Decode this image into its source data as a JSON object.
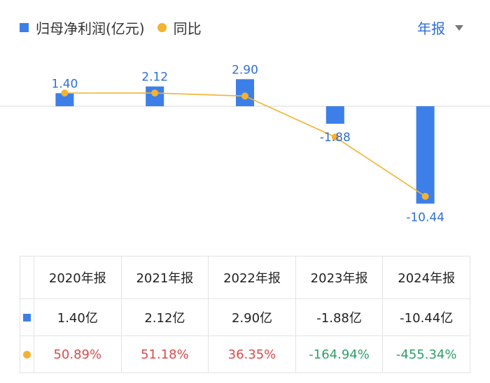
{
  "legend": {
    "bar_label": "归母净利润(亿元)",
    "line_label": "同比"
  },
  "period_selector": "年报",
  "chart_data": {
    "type": "bar",
    "categories": [
      "2020年报",
      "2021年报",
      "2022年报",
      "2023年报",
      "2024年报"
    ],
    "series": [
      {
        "name": "归母净利润(亿元)",
        "type": "bar",
        "values": [
          1.4,
          2.12,
          2.9,
          -1.88,
          -10.44
        ],
        "labels": [
          "1.40",
          "2.12",
          "2.90",
          "-1.88",
          "-10.44"
        ],
        "color": "#3d7fe8"
      },
      {
        "name": "同比",
        "type": "line",
        "values": [
          50.89,
          51.18,
          36.35,
          -164.94,
          -455.34
        ],
        "color": "#f3b230"
      }
    ]
  },
  "table": {
    "headers": [
      "2020年报",
      "2021年报",
      "2022年报",
      "2023年报",
      "2024年报"
    ],
    "values": [
      "1.40亿",
      "2.12亿",
      "2.90亿",
      "-1.88亿",
      "-10.44亿"
    ],
    "yoy": [
      "50.89%",
      "51.18%",
      "36.35%",
      "-164.94%",
      "-455.34%"
    ]
  },
  "colors": {
    "bar": "#3d7fe8",
    "line": "#f3b230",
    "positive": "#d94b4b",
    "negative": "#2f9e6a",
    "accent": "#2f6fd6"
  }
}
